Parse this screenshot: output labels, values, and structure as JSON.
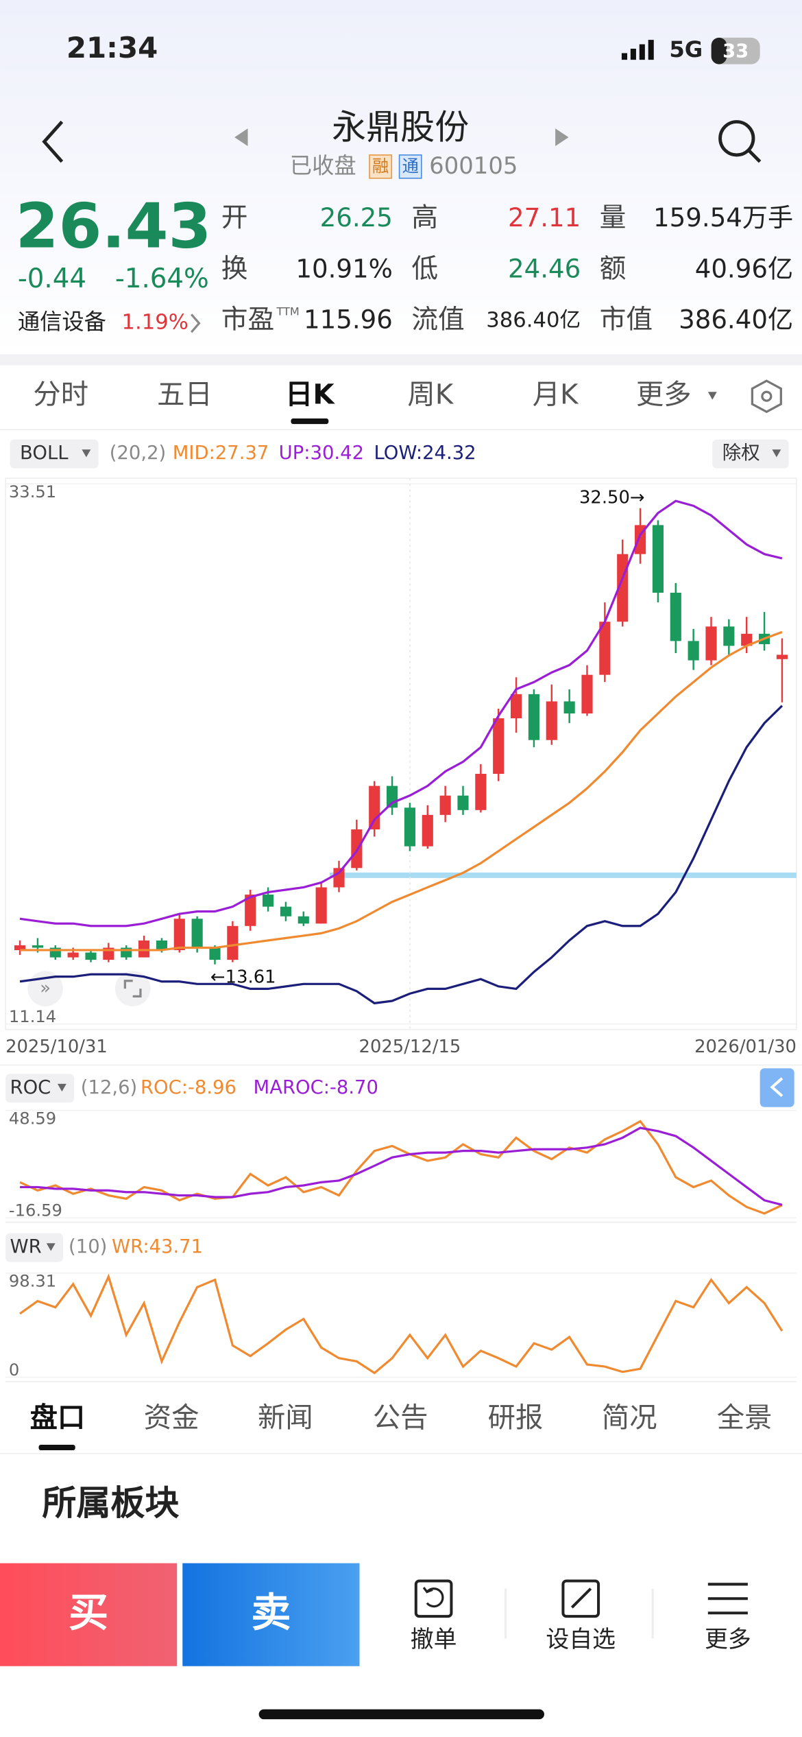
{
  "status_bar": {
    "time": "21:34",
    "network": "5G",
    "battery": "33"
  },
  "header": {
    "title": "永鼎股份",
    "status": "已收盘",
    "badges": [
      "融",
      "通"
    ],
    "code": "600105"
  },
  "quote": {
    "price": "26.43",
    "change": "-0.44",
    "change_pct": "-1.64%",
    "sector": "通信设备",
    "sector_change": "1.19%",
    "fields": [
      {
        "label": "开",
        "value": "26.25",
        "color": "#1a8a5a"
      },
      {
        "label": "高",
        "value": "27.11",
        "color": "#e0353b"
      },
      {
        "label": "量",
        "value": "159.54万手",
        "color": "#222"
      },
      {
        "label": "换",
        "value": "10.91%",
        "color": "#222"
      },
      {
        "label": "低",
        "value": "24.46",
        "color": "#1a8a5a"
      },
      {
        "label": "额",
        "value": "40.96亿",
        "color": "#222"
      },
      {
        "label": "市盈",
        "sup": "TTM",
        "value": "115.96",
        "color": "#222"
      },
      {
        "label": "流值",
        "value": "386.40亿",
        "color": "#222"
      },
      {
        "label": "市值",
        "value": "386.40亿",
        "color": "#222"
      }
    ]
  },
  "period_tabs": [
    "分时",
    "五日",
    "日K",
    "周K",
    "月K",
    "更多"
  ],
  "boll_bar": {
    "indicator": "BOLL",
    "params": "(20,2)",
    "mid": "MID:27.37",
    "up": "UP:30.42",
    "low": "LOW:24.32",
    "adjust": "除权"
  },
  "roc_bar": {
    "indicator": "ROC",
    "params": "(12,6)",
    "roc": "ROC:-8.96",
    "maroc": "MAROC:-8.70"
  },
  "wr_bar": {
    "indicator": "WR",
    "params": "(10)",
    "wr": "WR:43.71"
  },
  "chart_data": [
    {
      "type": "candlestick",
      "up_color": "#e8393c",
      "down_color": "#1a9a5c",
      "categories": [
        "2025/10/31",
        null,
        null,
        null,
        null,
        null,
        null,
        null,
        null,
        null,
        null,
        null,
        null,
        null,
        null,
        null,
        null,
        null,
        null,
        null,
        null,
        null,
        "2025/12/15",
        null,
        null,
        null,
        null,
        null,
        null,
        null,
        null,
        null,
        null,
        null,
        null,
        null,
        null,
        null,
        null,
        null,
        null,
        null,
        null,
        "2026/01/30"
      ],
      "open": [
        14.2,
        14.4,
        14.3,
        13.9,
        14.1,
        13.8,
        14.3,
        13.9,
        14.6,
        14.2,
        15.5,
        14.3,
        13.8,
        15.2,
        16.5,
        16.0,
        15.6,
        15.3,
        16.8,
        17.6,
        19.2,
        21.0,
        20.1,
        18.5,
        19.8,
        20.6,
        20.0,
        21.5,
        23.8,
        24.8,
        22.9,
        24.5,
        24.0,
        25.6,
        27.8,
        30.6,
        31.8,
        29.0,
        27.0,
        26.2,
        27.6,
        26.8,
        27.3,
        26.25
      ],
      "close": [
        14.4,
        14.3,
        13.9,
        14.1,
        13.8,
        14.3,
        13.9,
        14.6,
        14.2,
        15.5,
        14.3,
        13.8,
        15.2,
        16.5,
        16.0,
        15.6,
        15.3,
        16.8,
        17.6,
        19.2,
        21.0,
        20.1,
        18.5,
        19.8,
        20.6,
        20.0,
        21.5,
        23.8,
        24.8,
        22.9,
        24.5,
        24.0,
        25.6,
        27.8,
        30.6,
        31.8,
        29.0,
        27.0,
        26.2,
        27.6,
        26.8,
        27.3,
        26.87,
        26.43
      ],
      "high": [
        14.6,
        14.7,
        14.4,
        14.3,
        14.2,
        14.5,
        14.4,
        14.8,
        14.7,
        15.7,
        15.6,
        14.4,
        15.4,
        16.7,
        16.8,
        16.2,
        15.8,
        17.0,
        17.9,
        19.6,
        21.2,
        21.4,
        20.3,
        20.2,
        21.0,
        21.0,
        21.9,
        24.2,
        25.5,
        25.0,
        25.2,
        25.0,
        26.0,
        28.6,
        31.2,
        32.5,
        32.0,
        29.4,
        27.5,
        28.0,
        27.9,
        28.0,
        28.2,
        27.11
      ],
      "low": [
        14.0,
        14.1,
        13.8,
        13.8,
        13.7,
        13.7,
        13.8,
        13.9,
        14.1,
        14.1,
        14.1,
        13.61,
        13.7,
        15.0,
        15.8,
        15.4,
        15.2,
        15.3,
        16.6,
        17.5,
        18.9,
        19.8,
        18.3,
        18.4,
        19.5,
        19.8,
        19.9,
        21.2,
        23.2,
        22.6,
        22.7,
        23.6,
        23.9,
        25.3,
        27.6,
        30.2,
        28.6,
        26.5,
        25.8,
        26.0,
        26.4,
        26.5,
        26.6,
        24.46
      ],
      "series": [
        {
          "color": "#f08a30",
          "values": [
            14.2,
            14.2,
            14.2,
            14.2,
            14.2,
            14.2,
            14.2,
            14.2,
            14.2,
            14.3,
            14.3,
            14.3,
            14.4,
            14.5,
            14.6,
            14.7,
            14.8,
            14.9,
            15.1,
            15.4,
            15.8,
            16.2,
            16.5,
            16.8,
            17.1,
            17.4,
            17.8,
            18.3,
            18.8,
            19.3,
            19.8,
            20.3,
            20.9,
            21.6,
            22.4,
            23.3,
            24.0,
            24.7,
            25.3,
            25.9,
            26.4,
            26.8,
            27.1,
            27.37
          ]
        },
        {
          "color": "#9a1ed6",
          "values": [
            15.5,
            15.4,
            15.3,
            15.3,
            15.2,
            15.2,
            15.2,
            15.3,
            15.5,
            15.7,
            15.8,
            15.8,
            16.0,
            16.4,
            16.6,
            16.7,
            16.8,
            17.0,
            17.4,
            18.3,
            19.6,
            20.3,
            20.6,
            21.0,
            21.6,
            22.0,
            22.6,
            23.9,
            25.0,
            25.3,
            25.7,
            26.0,
            26.6,
            27.8,
            29.6,
            31.4,
            32.3,
            32.8,
            32.6,
            32.2,
            31.6,
            31.0,
            30.6,
            30.42
          ]
        },
        {
          "color": "#1b1f7a",
          "values": [
            12.9,
            13.0,
            13.1,
            13.1,
            13.2,
            13.2,
            13.2,
            13.1,
            12.9,
            12.9,
            12.8,
            12.8,
            12.8,
            12.6,
            12.6,
            12.7,
            12.8,
            12.8,
            12.8,
            12.5,
            12.0,
            12.1,
            12.4,
            12.6,
            12.6,
            12.8,
            13.0,
            12.7,
            12.6,
            13.3,
            13.9,
            14.6,
            15.2,
            15.4,
            15.2,
            15.2,
            15.7,
            16.6,
            18.0,
            19.6,
            21.2,
            22.6,
            23.6,
            24.32
          ]
        }
      ],
      "support_level": 17.3,
      "support_color": "#a8dcf3",
      "annotations": [
        {
          "value": 32.5,
          "label": "32.50→"
        },
        {
          "value": 13.61,
          "label": "←13.61"
        }
      ],
      "ylim": [
        11.14,
        33.51
      ],
      "yticks": [
        11.14,
        33.51
      ]
    },
    {
      "type": "line",
      "series": [
        {
          "color": "#f08a30",
          "values": [
            5,
            0,
            3,
            -2,
            1,
            -3,
            -5,
            2,
            0,
            -6,
            -2,
            -5,
            -4,
            10,
            3,
            8,
            -1,
            2,
            -3,
            12,
            24,
            27,
            22,
            18,
            20,
            28,
            22,
            20,
            32,
            24,
            19,
            26,
            23,
            31,
            36,
            42,
            28,
            8,
            2,
            6,
            -3,
            -10,
            -14,
            -8.96
          ]
        },
        {
          "color": "#9a1ed6",
          "values": [
            2,
            2,
            1,
            1,
            0,
            0,
            -1,
            -1,
            -2,
            -3,
            -3,
            -4,
            -4,
            -2,
            -1,
            2,
            3,
            5,
            6,
            10,
            15,
            20,
            22,
            23,
            23,
            24,
            24,
            23,
            24,
            25,
            25,
            25,
            26,
            28,
            32,
            38,
            36,
            33,
            26,
            18,
            10,
            2,
            -6,
            -8.7
          ]
        }
      ],
      "ylim": [
        -16.59,
        48.59
      ],
      "yticks": [
        -16.59,
        48.59
      ]
    },
    {
      "type": "line",
      "series": [
        {
          "color": "#f08a30",
          "values": [
            60,
            72,
            66,
            88,
            58,
            95,
            40,
            70,
            15,
            52,
            85,
            92,
            30,
            20,
            32,
            45,
            55,
            28,
            18,
            15,
            4,
            18,
            40,
            18,
            40,
            10,
            25,
            18,
            10,
            32,
            26,
            38,
            12,
            10,
            5,
            8,
            40,
            72,
            66,
            92,
            70,
            85,
            70,
            43.71
          ]
        }
      ],
      "ylim": [
        0,
        98.31
      ],
      "yticks": [
        0,
        98.31
      ]
    }
  ],
  "info_tabs": [
    "盘口",
    "资金",
    "新闻",
    "公告",
    "研报",
    "简况",
    "全景"
  ],
  "section_title": "所属板块",
  "actions": {
    "buy": "买",
    "sell": "卖",
    "items": [
      "撤单",
      "设自选",
      "更多"
    ]
  }
}
